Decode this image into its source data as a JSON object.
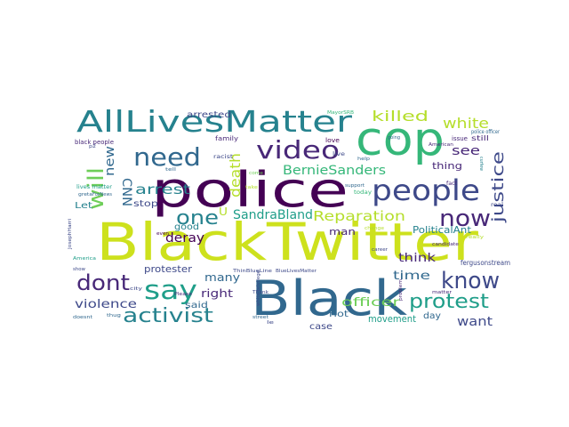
{
  "wordcloud": {
    "words": [
      {
        "text": "BlackTwitter",
        "color": "#cde11d"
      },
      {
        "text": "police",
        "color": "#440154"
      },
      {
        "text": "Black",
        "color": "#31688e"
      },
      {
        "text": "cop",
        "color": "#35b779"
      },
      {
        "text": "AllLivesMatter",
        "color": "#26828e"
      },
      {
        "text": "people",
        "color": "#3e4989"
      },
      {
        "text": "need",
        "color": "#31688e"
      },
      {
        "text": "video",
        "color": "#482878"
      },
      {
        "text": "say",
        "color": "#1f9e89"
      },
      {
        "text": "now",
        "color": "#482878"
      },
      {
        "text": "know",
        "color": "#3e4989"
      },
      {
        "text": "protest",
        "color": "#1f9e89"
      },
      {
        "text": "activist",
        "color": "#26828e"
      },
      {
        "text": "dont",
        "color": "#482878"
      },
      {
        "text": "will",
        "color": "#6ece58"
      },
      {
        "text": "one",
        "color": "#26828e"
      },
      {
        "text": "death",
        "color": "#b5de2b"
      },
      {
        "text": "justice",
        "color": "#3e4989"
      },
      {
        "text": "killed",
        "color": "#b5de2b"
      },
      {
        "text": "white",
        "color": "#b5de2b"
      },
      {
        "text": "Reparation",
        "color": "#b5de2b"
      },
      {
        "text": "SandraBland",
        "color": "#1f9e89"
      },
      {
        "text": "BernieSanders",
        "color": "#35b779"
      },
      {
        "text": "CNN",
        "color": "#31688e"
      },
      {
        "text": "arrest",
        "color": "#26828e"
      },
      {
        "text": "new",
        "color": "#31688e"
      },
      {
        "text": "deray",
        "color": "#440154"
      },
      {
        "text": "violence",
        "color": "#3e4989"
      },
      {
        "text": "officer",
        "color": "#6ece58"
      },
      {
        "text": "time",
        "color": "#31688e"
      },
      {
        "text": "think",
        "color": "#482878"
      },
      {
        "text": "see",
        "color": "#482878"
      },
      {
        "text": "want",
        "color": "#3e4989"
      },
      {
        "text": "many",
        "color": "#31688e"
      },
      {
        "text": "right",
        "color": "#482878"
      },
      {
        "text": "U",
        "color": "#b5de2b"
      },
      {
        "text": "good",
        "color": "#26828e"
      },
      {
        "text": "man",
        "color": "#482878"
      },
      {
        "text": "arrested",
        "color": "#3e4989"
      },
      {
        "text": "stop",
        "color": "#3e4989"
      },
      {
        "text": "said",
        "color": "#31688e"
      },
      {
        "text": "Let",
        "color": "#26828e"
      },
      {
        "text": "thing",
        "color": "#482878"
      },
      {
        "text": "PoliticalAnt",
        "color": "#26828e"
      },
      {
        "text": "protester",
        "color": "#3e4989"
      },
      {
        "text": "riot",
        "color": "#31688e"
      },
      {
        "text": "movement",
        "color": "#1f9e89"
      },
      {
        "text": "day",
        "color": "#31688e"
      },
      {
        "text": "case",
        "color": "#3e4989"
      },
      {
        "text": "fergusonstream",
        "color": "#3e4989"
      },
      {
        "text": "black people",
        "color": "#482878"
      },
      {
        "text": "family",
        "color": "#482878"
      },
      {
        "text": "love",
        "color": "#440154"
      },
      {
        "text": "issue",
        "color": "#482878"
      },
      {
        "text": "police officer",
        "color": "#31688e"
      },
      {
        "text": "still",
        "color": "#482878"
      },
      {
        "text": "lives matter",
        "color": "#1f9e89"
      },
      {
        "text": "racist",
        "color": "#3e4989"
      },
      {
        "text": "tell",
        "color": "#31688e"
      },
      {
        "text": "live",
        "color": "#3e4989"
      },
      {
        "text": "help",
        "color": "#31688e"
      },
      {
        "text": "real",
        "color": "#3e4989"
      },
      {
        "text": "fact",
        "color": "#482878"
      },
      {
        "text": "support",
        "color": "#31688e"
      },
      {
        "text": "today",
        "color": "#35b779"
      },
      {
        "text": "greta",
        "color": "#31688e"
      },
      {
        "text": "FoxNews",
        "color": "#31688e"
      },
      {
        "text": "Please",
        "color": "#482878"
      },
      {
        "text": "thug",
        "color": "#31688e"
      },
      {
        "text": "street",
        "color": "#31688e"
      },
      {
        "text": "Thank",
        "color": "#3e4989"
      },
      {
        "text": "white privilege",
        "color": "#3e4989"
      },
      {
        "text": "candidate",
        "color": "#482878"
      },
      {
        "text": "really",
        "color": "#b5de2b"
      },
      {
        "text": "America",
        "color": "#1f9e89"
      },
      {
        "text": "show",
        "color": "#3e4989"
      },
      {
        "text": "doesnt",
        "color": "#31688e"
      },
      {
        "text": "matter",
        "color": "#482878"
      },
      {
        "text": "problem",
        "color": "#482878"
      },
      {
        "text": "city",
        "color": "#3e4989"
      },
      {
        "text": "American",
        "color": "#482878"
      },
      {
        "text": "change",
        "color": "#b5de2b"
      },
      {
        "text": "going",
        "color": "#31688e"
      },
      {
        "text": "ThinBlueLine",
        "color": "#3e4989"
      },
      {
        "text": "BlueLivesMatter",
        "color": "#3e4989"
      },
      {
        "text": "curfew",
        "color": "#26828e"
      },
      {
        "text": "JosephHarri",
        "color": "#3e4989"
      },
      {
        "text": "p2",
        "color": "#3e4989"
      },
      {
        "text": "come",
        "color": "#6ece58"
      },
      {
        "text": "take",
        "color": "#b5de2b"
      },
      {
        "text": "even",
        "color": "#440154"
      },
      {
        "text": "career",
        "color": "#3e4989"
      },
      {
        "text": "le",
        "color": "#3e4989"
      },
      {
        "text": "MayorSRB",
        "color": "#35b779"
      }
    ]
  }
}
